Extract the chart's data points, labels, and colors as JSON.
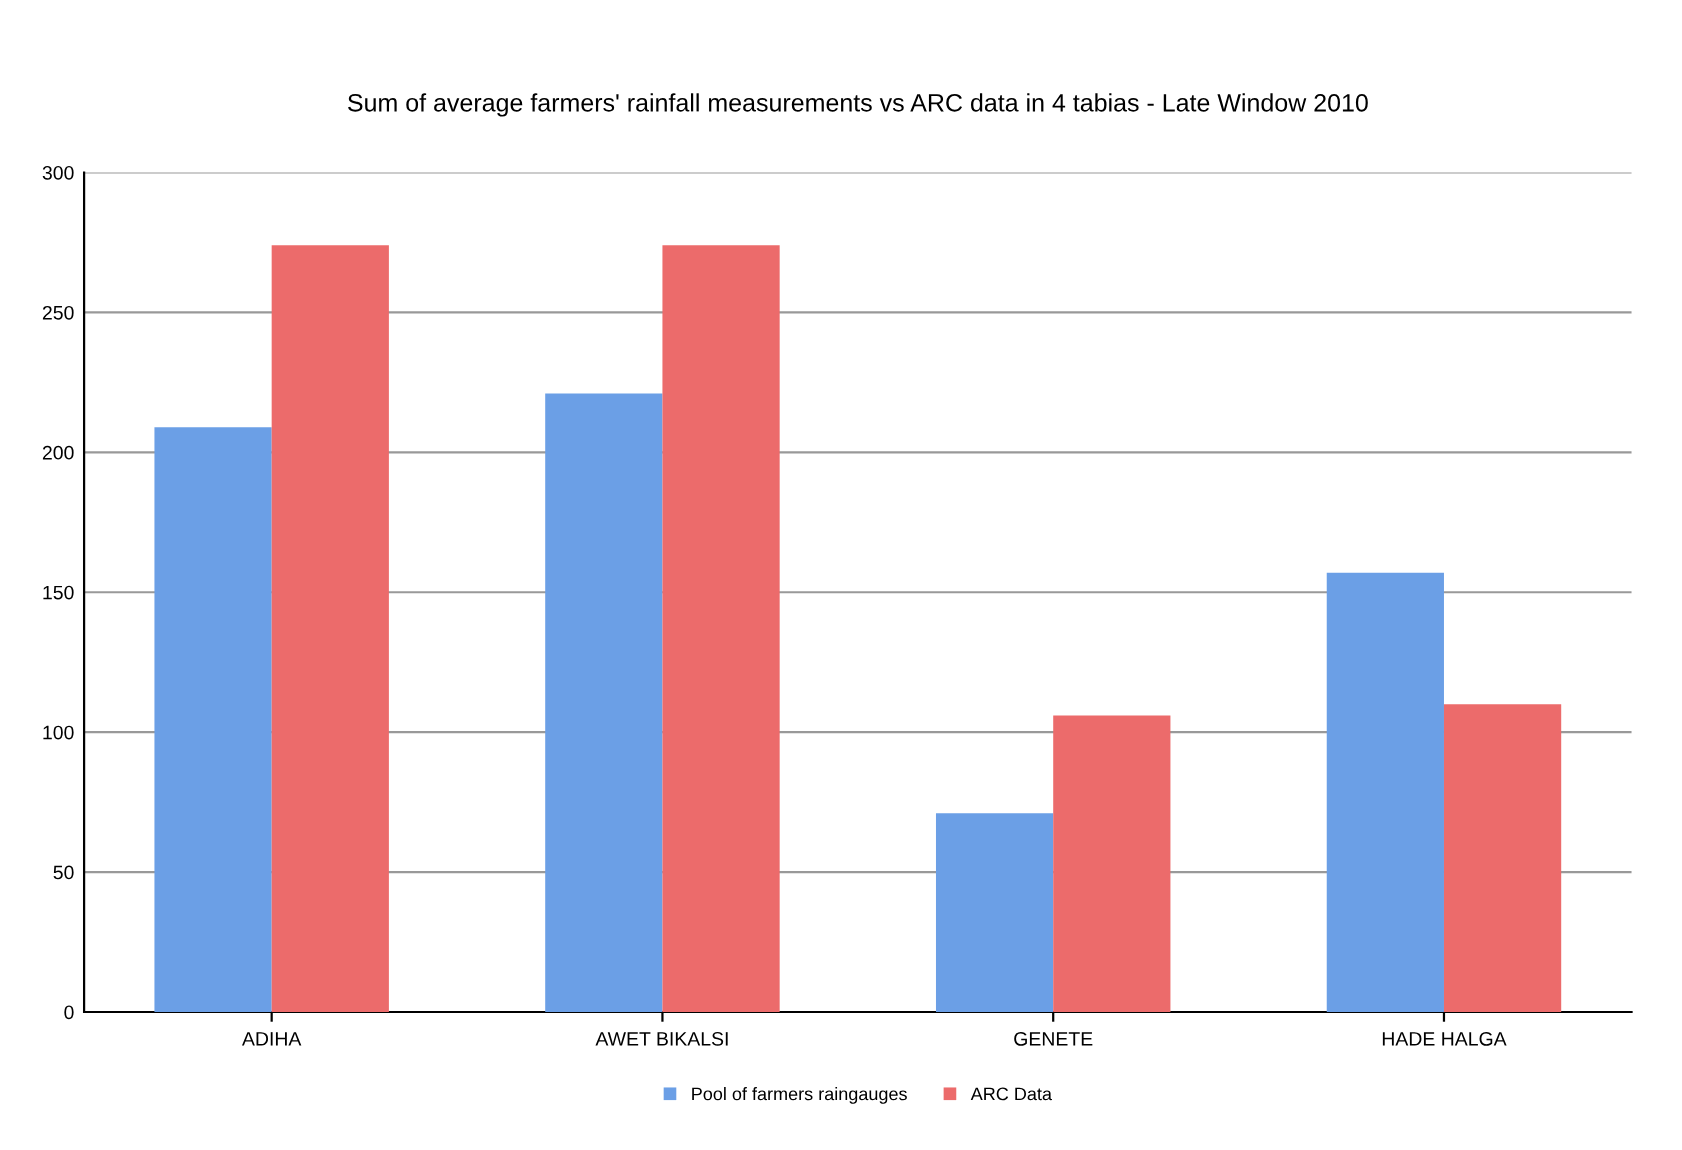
{
  "chart_data": {
    "type": "bar",
    "title": "Sum of average farmers' rainfall measurements vs ARC data in 4 tabias - Late Window 2010",
    "categories": [
      "ADIHA",
      "AWET BIKALSI",
      "GENETE",
      "HADE HALGA"
    ],
    "series": [
      {
        "name": "Pool of farmers raingauges",
        "color": "#6b9fe6",
        "values": [
          209,
          221,
          71,
          157
        ]
      },
      {
        "name": "ARC Data",
        "color": "#ec6b6b",
        "values": [
          274,
          274,
          106,
          110
        ]
      }
    ],
    "ylim": [
      0,
      300
    ],
    "yticks": [
      0,
      50,
      100,
      150,
      200,
      250,
      300
    ],
    "grid": "y",
    "legend": "bottom"
  }
}
